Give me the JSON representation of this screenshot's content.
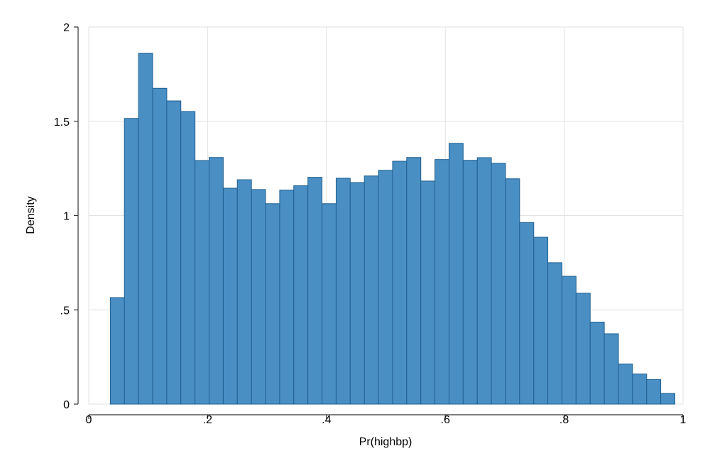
{
  "chart_data": {
    "type": "bar",
    "title": "",
    "xlabel": "Pr(highbp)",
    "ylabel": "Density",
    "xlim": [
      0,
      1
    ],
    "ylim": [
      0,
      2
    ],
    "xticks": [
      {
        "value": 0,
        "label": "0"
      },
      {
        "value": 0.2,
        "label": ".2"
      },
      {
        "value": 0.4,
        "label": ".4"
      },
      {
        "value": 0.6,
        "label": ".6"
      },
      {
        "value": 0.8,
        "label": ".8"
      },
      {
        "value": 1,
        "label": "1"
      }
    ],
    "yticks": [
      {
        "value": 0,
        "label": "0"
      },
      {
        "value": 0.5,
        "label": ".5"
      },
      {
        "value": 1,
        "label": "1"
      },
      {
        "value": 1.5,
        "label": "1.5"
      },
      {
        "value": 2,
        "label": "2"
      }
    ],
    "grid": true,
    "bar_color": "#4a8fc4",
    "bar_edge_color": "#1f5f8f",
    "bin_width": 0.02375,
    "bins": [
      {
        "x0": 0.0363,
        "x1": 0.06,
        "value": 0.565
      },
      {
        "x0": 0.06,
        "x1": 0.0838,
        "value": 1.515
      },
      {
        "x0": 0.0838,
        "x1": 0.1075,
        "value": 1.86
      },
      {
        "x0": 0.1075,
        "x1": 0.1313,
        "value": 1.675
      },
      {
        "x0": 0.1313,
        "x1": 0.155,
        "value": 1.608
      },
      {
        "x0": 0.155,
        "x1": 0.1788,
        "value": 1.552
      },
      {
        "x0": 0.1788,
        "x1": 0.2025,
        "value": 1.292
      },
      {
        "x0": 0.2025,
        "x1": 0.2263,
        "value": 1.308
      },
      {
        "x0": 0.2263,
        "x1": 0.25,
        "value": 1.145
      },
      {
        "x0": 0.25,
        "x1": 0.2738,
        "value": 1.19
      },
      {
        "x0": 0.2738,
        "x1": 0.2975,
        "value": 1.138
      },
      {
        "x0": 0.2975,
        "x1": 0.3213,
        "value": 1.063
      },
      {
        "x0": 0.3213,
        "x1": 0.345,
        "value": 1.135
      },
      {
        "x0": 0.345,
        "x1": 0.3688,
        "value": 1.158
      },
      {
        "x0": 0.3688,
        "x1": 0.3925,
        "value": 1.203
      },
      {
        "x0": 0.3925,
        "x1": 0.4163,
        "value": 1.063
      },
      {
        "x0": 0.4163,
        "x1": 0.44,
        "value": 1.198
      },
      {
        "x0": 0.44,
        "x1": 0.4638,
        "value": 1.175
      },
      {
        "x0": 0.4638,
        "x1": 0.4875,
        "value": 1.21
      },
      {
        "x0": 0.4875,
        "x1": 0.5113,
        "value": 1.24
      },
      {
        "x0": 0.5113,
        "x1": 0.535,
        "value": 1.288
      },
      {
        "x0": 0.535,
        "x1": 0.5588,
        "value": 1.308
      },
      {
        "x0": 0.5588,
        "x1": 0.5825,
        "value": 1.183
      },
      {
        "x0": 0.5825,
        "x1": 0.6063,
        "value": 1.297
      },
      {
        "x0": 0.6063,
        "x1": 0.63,
        "value": 1.383
      },
      {
        "x0": 0.63,
        "x1": 0.6538,
        "value": 1.293
      },
      {
        "x0": 0.6538,
        "x1": 0.6775,
        "value": 1.307
      },
      {
        "x0": 0.6775,
        "x1": 0.7013,
        "value": 1.277
      },
      {
        "x0": 0.7013,
        "x1": 0.725,
        "value": 1.195
      },
      {
        "x0": 0.725,
        "x1": 0.7488,
        "value": 0.963
      },
      {
        "x0": 0.7488,
        "x1": 0.7725,
        "value": 0.885
      },
      {
        "x0": 0.7725,
        "x1": 0.7963,
        "value": 0.75
      },
      {
        "x0": 0.7963,
        "x1": 0.82,
        "value": 0.678
      },
      {
        "x0": 0.82,
        "x1": 0.8438,
        "value": 0.588
      },
      {
        "x0": 0.8438,
        "x1": 0.8675,
        "value": 0.435
      },
      {
        "x0": 0.8675,
        "x1": 0.8913,
        "value": 0.373
      },
      {
        "x0": 0.8913,
        "x1": 0.915,
        "value": 0.213
      },
      {
        "x0": 0.915,
        "x1": 0.9388,
        "value": 0.16
      },
      {
        "x0": 0.9388,
        "x1": 0.9625,
        "value": 0.13
      },
      {
        "x0": 0.9625,
        "x1": 0.9863,
        "value": 0.057
      }
    ]
  }
}
